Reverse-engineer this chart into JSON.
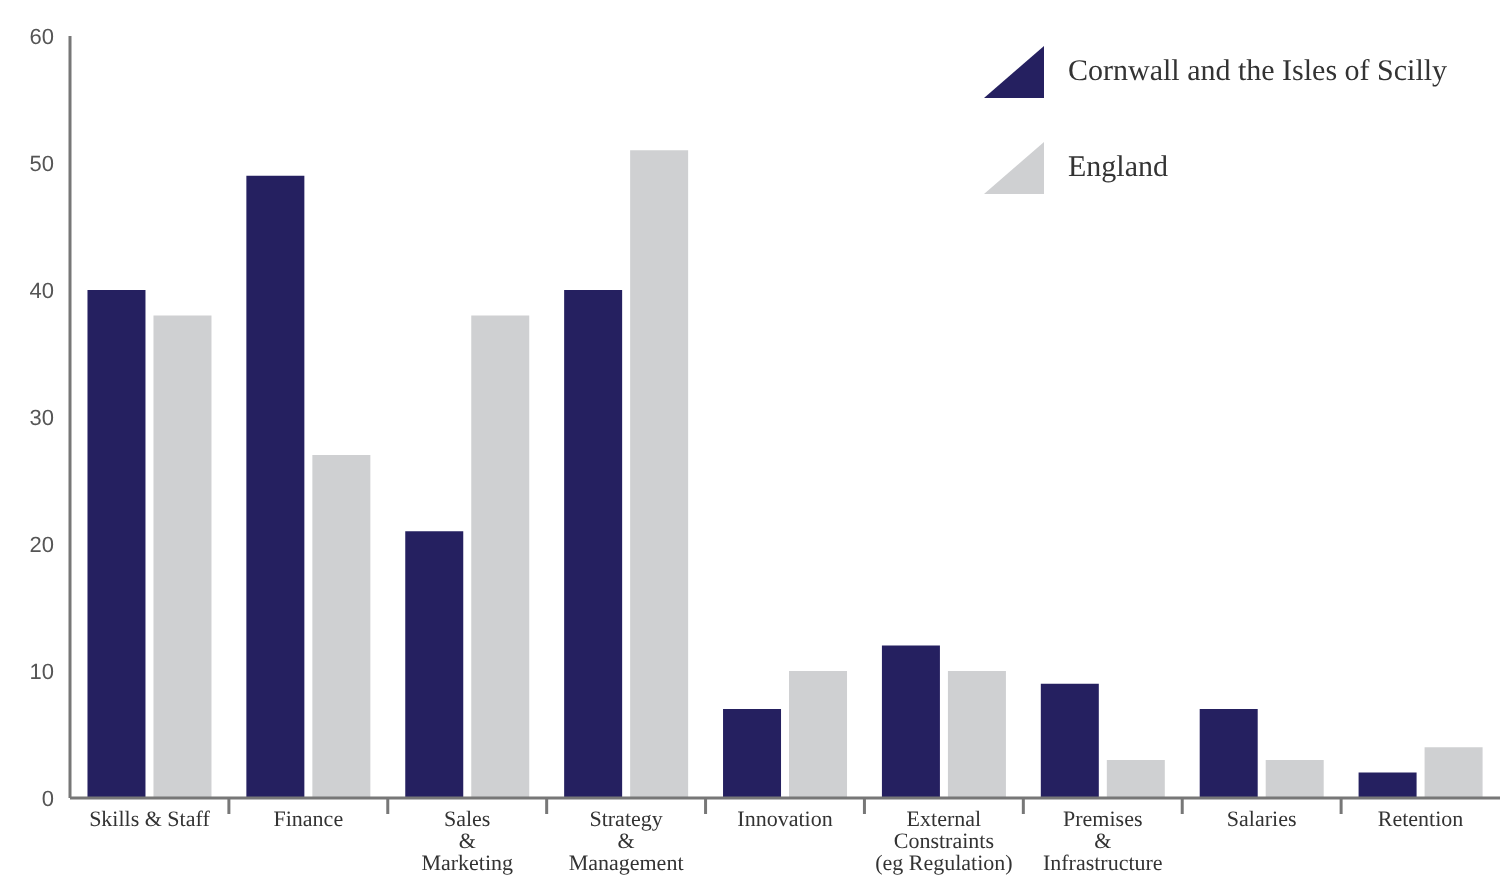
{
  "chart_data": {
    "type": "bar",
    "categories": [
      "Skills & Staff",
      "Finance",
      "Sales\n&\nMarketing",
      "Strategy\n&\nManagement",
      "Innovation",
      "External\nConstraints\n(eg Regulation)",
      "Premises\n&\nInfrastructure",
      "Salaries",
      "Retention"
    ],
    "series": [
      {
        "name": "Cornwall and the Isles of Scilly",
        "color": "#252060",
        "values": [
          40,
          49,
          21,
          40,
          7,
          12,
          9,
          7,
          2
        ]
      },
      {
        "name": "England",
        "color": "#cfd0d2",
        "values": [
          38,
          27,
          38,
          51,
          10,
          10,
          3,
          3,
          4
        ]
      }
    ],
    "ylim": [
      0,
      60
    ],
    "yticks": [
      0,
      10,
      20,
      30,
      40,
      50,
      60
    ],
    "grid": false,
    "legend": "top right"
  }
}
